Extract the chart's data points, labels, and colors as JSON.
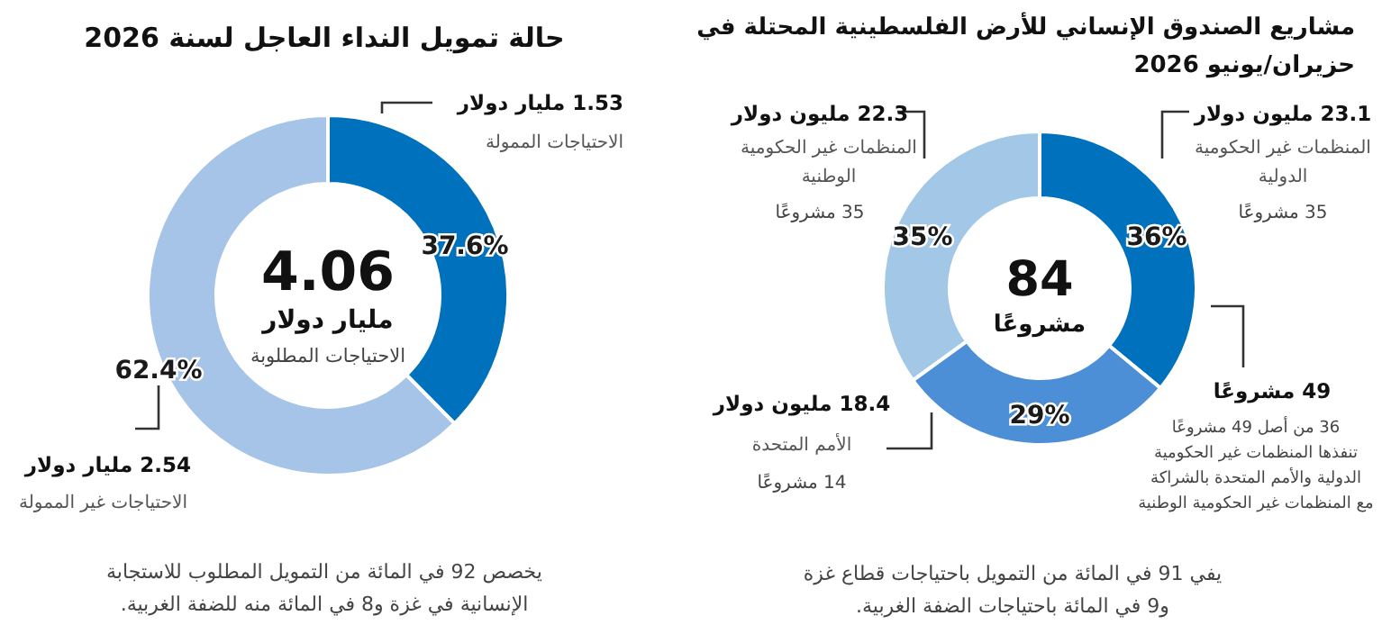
{
  "chart_data": [
    {
      "type": "donut",
      "title": "مشاريع الصندوق الإنساني للأرض الفلسطينية المحتلة في\nحزيران/يونيو 2026",
      "categories": [
        "المنظمات غير الحكومية\nالدولية",
        "الأمم المتحدة",
        "المنظمات غير الحكومية\nالوطنية"
      ],
      "values": [
        36,
        29,
        35
      ],
      "colors": [
        "#0071bc",
        "#4d8fd6",
        "#a3c7e6"
      ],
      "value_labels": [
        "36%",
        "29%",
        "35%"
      ],
      "annotations": [
        "23.1 مليون دولار",
        "35 مشروعًا",
        "22.3 مليون دولار",
        "35 مشروعًا",
        "18.4 مليون دولار",
        "14 مشروعًا",
        "84",
        "مشروعًا",
        "49 مشروعًا",
        "36 من أصل 49 مشروعًا\nتنفذها المنظمات غير الحكومية\nالدولية والأمم المتحدة بالشراكة\nمع المنظمات غير الحكومية الوطنية",
        "يفي 91 في المائة من التمويل باحتياجات قطاع غزة\nو9 في المائة باحتياجات الضفة الغربية."
      ]
    },
    {
      "type": "donut",
      "title": "حالة تمويل النداء العاجل لسنة 2026",
      "categories": [
        "الاحتياجات الممولة",
        "الاحتياجات غير الممولة"
      ],
      "values": [
        37.6,
        62.4
      ],
      "colors": [
        "#0071bc",
        "#a5c4e8"
      ],
      "value_labels": [
        "37.6%",
        "62.4%"
      ],
      "annotations": [
        "1.53 مليار دولار",
        "2.54 مليار دولار",
        "4.06",
        "مليار دولار",
        "الاحتياجات المطلوبة",
        "يخصص 92 في المائة من التمويل المطلوب للاستجابة\nالإنسانية في غزة و8 في المائة منه للضفة الغربية."
      ]
    }
  ]
}
